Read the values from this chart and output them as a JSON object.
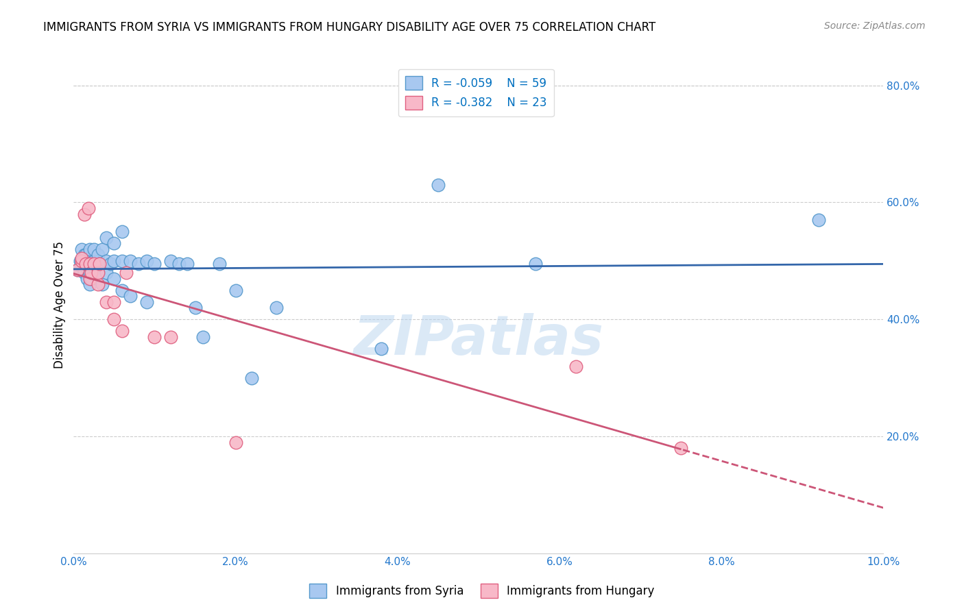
{
  "title": "IMMIGRANTS FROM SYRIA VS IMMIGRANTS FROM HUNGARY DISABILITY AGE OVER 75 CORRELATION CHART",
  "source": "Source: ZipAtlas.com",
  "ylabel": "Disability Age Over 75",
  "watermark": "ZIPatlas",
  "xlim": [
    0.0,
    0.1
  ],
  "ylim": [
    0.0,
    0.85
  ],
  "xtick_labels": [
    "0.0%",
    "2.0%",
    "4.0%",
    "6.0%",
    "8.0%",
    "10.0%"
  ],
  "xtick_values": [
    0.0,
    0.02,
    0.04,
    0.06,
    0.08,
    0.1
  ],
  "ytick_labels": [
    "20.0%",
    "40.0%",
    "60.0%",
    "80.0%"
  ],
  "ytick_values": [
    0.2,
    0.4,
    0.6,
    0.8
  ],
  "syria_color": "#a8c8f0",
  "syria_edge": "#5599cc",
  "hungary_color": "#f8b8c8",
  "hungary_edge": "#e06080",
  "syria_line_color": "#3366aa",
  "hungary_line_color": "#cc5577",
  "syria_R": -0.059,
  "syria_N": 59,
  "hungary_R": -0.382,
  "hungary_N": 23,
  "legend_R_color": "#0070c0",
  "title_fontsize": 12,
  "source_fontsize": 10,
  "syria_x": [
    0.0005,
    0.0008,
    0.001,
    0.001,
    0.001,
    0.0012,
    0.0013,
    0.0013,
    0.0015,
    0.0015,
    0.0015,
    0.0015,
    0.0017,
    0.0017,
    0.0018,
    0.002,
    0.002,
    0.002,
    0.002,
    0.002,
    0.0022,
    0.0022,
    0.0025,
    0.0025,
    0.003,
    0.003,
    0.003,
    0.0032,
    0.0035,
    0.0035,
    0.004,
    0.004,
    0.004,
    0.0045,
    0.005,
    0.005,
    0.005,
    0.006,
    0.006,
    0.006,
    0.007,
    0.007,
    0.008,
    0.009,
    0.009,
    0.01,
    0.012,
    0.013,
    0.014,
    0.015,
    0.016,
    0.018,
    0.02,
    0.022,
    0.025,
    0.038,
    0.045,
    0.057,
    0.092
  ],
  "syria_y": [
    0.485,
    0.5,
    0.49,
    0.5,
    0.52,
    0.5,
    0.48,
    0.51,
    0.49,
    0.495,
    0.505,
    0.51,
    0.47,
    0.495,
    0.5,
    0.46,
    0.48,
    0.495,
    0.505,
    0.52,
    0.47,
    0.495,
    0.5,
    0.52,
    0.48,
    0.495,
    0.51,
    0.495,
    0.46,
    0.52,
    0.48,
    0.5,
    0.54,
    0.495,
    0.47,
    0.5,
    0.53,
    0.45,
    0.5,
    0.55,
    0.44,
    0.5,
    0.495,
    0.43,
    0.5,
    0.495,
    0.5,
    0.495,
    0.495,
    0.42,
    0.37,
    0.495,
    0.45,
    0.3,
    0.42,
    0.35,
    0.63,
    0.495,
    0.57
  ],
  "hungary_x": [
    0.0005,
    0.001,
    0.001,
    0.0013,
    0.0015,
    0.0018,
    0.002,
    0.002,
    0.0022,
    0.0025,
    0.003,
    0.003,
    0.0032,
    0.004,
    0.005,
    0.005,
    0.006,
    0.0065,
    0.01,
    0.012,
    0.02,
    0.062,
    0.075
  ],
  "hungary_y": [
    0.485,
    0.5,
    0.505,
    0.58,
    0.495,
    0.59,
    0.47,
    0.495,
    0.48,
    0.495,
    0.46,
    0.48,
    0.495,
    0.43,
    0.4,
    0.43,
    0.38,
    0.48,
    0.37,
    0.37,
    0.19,
    0.32,
    0.18
  ]
}
